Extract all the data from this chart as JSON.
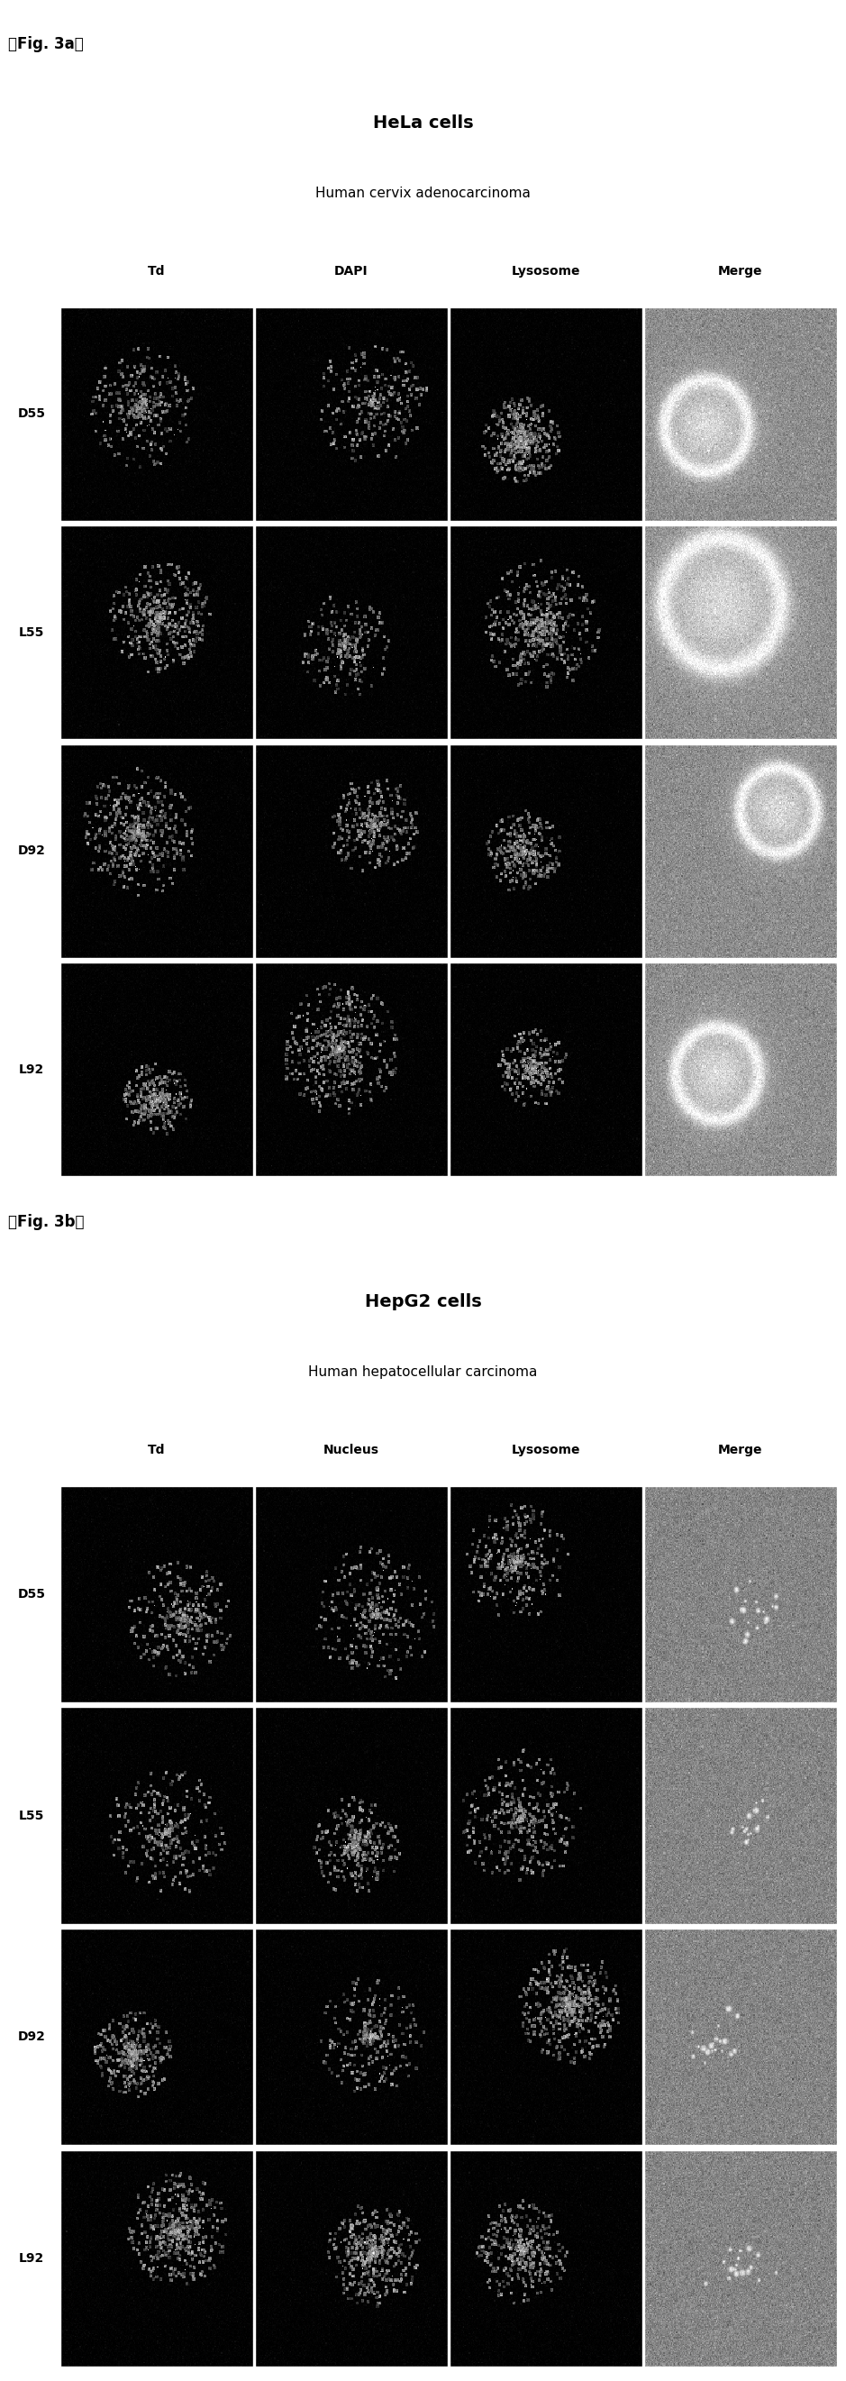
{
  "fig_label_a": "『Fig. 3a』",
  "fig_label_b": "『Fig. 3b』",
  "title_a": "HeLa cells",
  "subtitle_a": "Human cervix adenocarcinoma",
  "title_b": "HepG2 cells",
  "subtitle_b": "Human hepatocellular carcinoma",
  "col_labels_a": [
    "Td",
    "DAPI",
    "Lysosome",
    "Merge"
  ],
  "col_labels_b": [
    "Td",
    "Nucleus",
    "Lysosome",
    "Merge"
  ],
  "row_labels": [
    "D55",
    "L55",
    "D92",
    "L92"
  ],
  "bg_color": "#ffffff",
  "title_fontsize": 14,
  "subtitle_fontsize": 11,
  "label_fontsize": 10,
  "row_label_fontsize": 10,
  "fig_label_fontsize": 12
}
